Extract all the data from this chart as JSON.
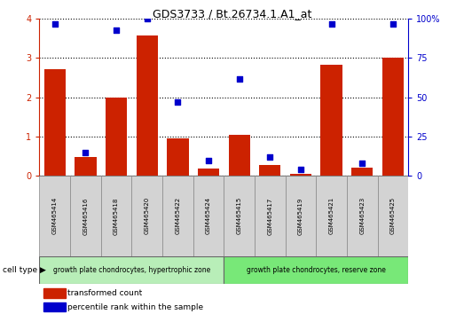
{
  "title": "GDS3733 / Bt.26734.1.A1_at",
  "samples": [
    "GSM465414",
    "GSM465416",
    "GSM465418",
    "GSM465420",
    "GSM465422",
    "GSM465424",
    "GSM465415",
    "GSM465417",
    "GSM465419",
    "GSM465421",
    "GSM465423",
    "GSM465425"
  ],
  "red_values": [
    2.72,
    0.48,
    2.0,
    3.57,
    0.95,
    0.18,
    1.05,
    0.28,
    0.05,
    2.82,
    0.22,
    3.02
  ],
  "blue_values": [
    97,
    15,
    93,
    100,
    47,
    10,
    62,
    12,
    4,
    97,
    8,
    97
  ],
  "group1_label": "growth plate chondrocytes, hypertrophic zone",
  "group2_label": "growth plate chondrocytes, reserve zone",
  "group1_count": 6,
  "group2_count": 6,
  "cell_type_label": "cell type",
  "legend1": "transformed count",
  "legend2": "percentile rank within the sample",
  "left_axis_color": "#cc2200",
  "right_axis_color": "#0000cc",
  "bar_color": "#cc2200",
  "dot_color": "#0000cc",
  "ylim_left": [
    0,
    4
  ],
  "ylim_right": [
    0,
    100
  ],
  "ytick_labels_left": [
    "0",
    "1",
    "2",
    "3",
    "4"
  ],
  "ytick_labels_right": [
    "0",
    "25",
    "50",
    "75",
    "100%"
  ],
  "grid_color": "black",
  "group1_bg": "#b8eeb8",
  "group2_bg": "#78e878",
  "tick_label_area_bg": "#d3d3d3",
  "bar_width": 0.7
}
